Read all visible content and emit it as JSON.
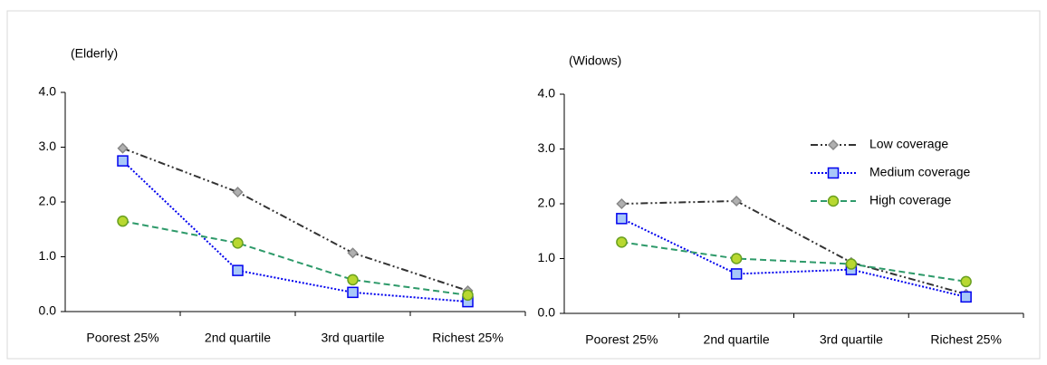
{
  "chart_data": [
    {
      "type": "line",
      "title": "(Elderly)",
      "categories": [
        "Poorest 25%",
        "2nd quartile",
        "3rd quartile",
        "Richest 25%"
      ],
      "ylim": [
        0,
        4
      ],
      "yticks": [
        {
          "value": 0,
          "label": "0.0"
        },
        {
          "value": 1,
          "label": "1.0"
        },
        {
          "value": 2,
          "label": "2.0"
        },
        {
          "value": 3,
          "label": "3.0"
        },
        {
          "value": 4,
          "label": "4.0"
        }
      ],
      "series": [
        {
          "color": "#333333",
          "marker_color": "#b0b0b0",
          "marker": "diamond",
          "dash": "8 3 2 3 2 3",
          "values": [
            2.98,
            2.18,
            1.07,
            0.38
          ]
        },
        {
          "color": "#0000ee",
          "marker_color": "#a8c8f8",
          "marker": "square",
          "dash": "2 2",
          "values": [
            2.75,
            0.75,
            0.35,
            0.18
          ]
        },
        {
          "color": "#2e9a6a",
          "marker_color": "#b8d830",
          "marker": "circle",
          "dash": "7 4",
          "values": [
            1.65,
            1.25,
            0.58,
            0.3
          ]
        }
      ]
    },
    {
      "type": "line",
      "title": "(Widows)",
      "categories": [
        "Poorest 25%",
        "2nd quartile",
        "3rd quartile",
        "Richest 25%"
      ],
      "ylim": [
        0,
        4
      ],
      "yticks": [
        {
          "value": 0,
          "label": "0.0"
        },
        {
          "value": 1,
          "label": "1.0"
        },
        {
          "value": 2,
          "label": "2.0"
        },
        {
          "value": 3,
          "label": "3.0"
        },
        {
          "value": 4,
          "label": "4.0"
        }
      ],
      "legend": "upper right",
      "series": [
        {
          "name": "Low coverage",
          "color": "#333333",
          "marker_color": "#b0b0b0",
          "marker": "diamond",
          "dash": "8 3 2 3 2 3",
          "values": [
            2.0,
            2.05,
            0.93,
            0.35
          ]
        },
        {
          "name": "Medium coverage",
          "color": "#0000ee",
          "marker_color": "#a8c8f8",
          "marker": "square",
          "dash": "2 2",
          "values": [
            1.73,
            0.72,
            0.8,
            0.3
          ]
        },
        {
          "name": "High coverage",
          "color": "#2e9a6a",
          "marker_color": "#b8d830",
          "marker": "circle",
          "dash": "7 4",
          "values": [
            1.3,
            1.0,
            0.9,
            0.58
          ]
        }
      ]
    }
  ]
}
